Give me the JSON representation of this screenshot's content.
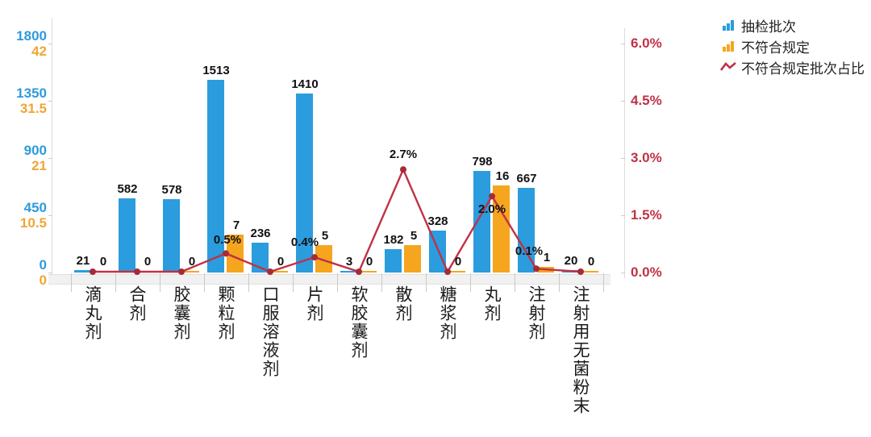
{
  "legend": {
    "items": [
      {
        "label": "抽检批次",
        "type": "bar",
        "color": "#2B9CDE",
        "icon": "blue-bars-icon"
      },
      {
        "label": "不符合规定",
        "type": "bar",
        "color": "#F6A51F",
        "icon": "orange-bars-icon"
      },
      {
        "label": "不符合规定批次占比",
        "type": "line",
        "color": "#C03245",
        "icon": "red-line-icon"
      }
    ]
  },
  "chart_data": {
    "type": "bar",
    "subtype": "combo-bar-line-dual-axis",
    "categories": [
      "滴丸剂",
      "合剂",
      "胶囊剂",
      "颗粒剂",
      "口服溶液剂",
      "片剂",
      "软胶囊剂",
      "散剂",
      "糖浆剂",
      "丸剂",
      "注射剂",
      "注射用无菌粉末"
    ],
    "series": [
      {
        "name": "抽检批次",
        "type": "bar",
        "axis": "left_blue",
        "color": "#2B9CDE",
        "values": [
          21,
          582,
          578,
          1513,
          236,
          1410,
          3,
          182,
          328,
          798,
          667,
          20
        ]
      },
      {
        "name": "不符合规定",
        "type": "bar",
        "axis": "left_orange",
        "color": "#F6A51F",
        "values": [
          0,
          0,
          0,
          7,
          0,
          5,
          0,
          5,
          0,
          16,
          1,
          0
        ]
      },
      {
        "name": "不符合规定批次占比",
        "type": "line",
        "axis": "right",
        "color": "#C03245",
        "marker_color": "#A62A38",
        "values": [
          0,
          0,
          0,
          0.5,
          0,
          0.4,
          0,
          2.7,
          0,
          2.0,
          0.1,
          0
        ],
        "labels": [
          "",
          "",
          "",
          "0.5%",
          "",
          "0.4%",
          "",
          "2.7%",
          "",
          "2.0%",
          "0.1%",
          ""
        ]
      }
    ],
    "axes": {
      "left_blue": {
        "ticks": [
          "1800",
          "1350",
          "900",
          "450",
          "0"
        ],
        "max": 1800,
        "color": "#2E9BDB"
      },
      "left_orange": {
        "ticks": [
          "42",
          "31.5",
          "21",
          "10.5",
          "0"
        ],
        "max": 42,
        "color": "#EFA636"
      },
      "right": {
        "ticks": [
          "6.0%",
          "4.5%",
          "3.0%",
          "1.5%",
          "0.0%"
        ],
        "max": 6,
        "color": "#C03245"
      }
    },
    "grid": false,
    "legend_position": "top-right",
    "title": ""
  }
}
